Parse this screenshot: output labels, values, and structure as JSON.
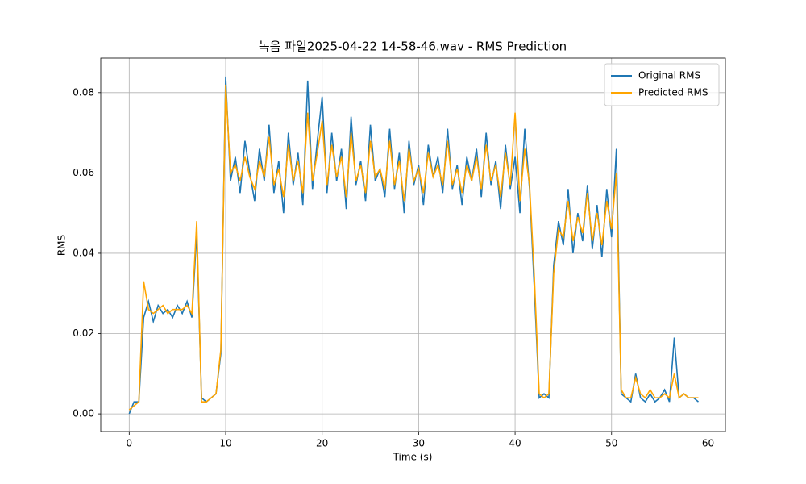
{
  "chart_data": {
    "type": "line",
    "title": "녹음 파일2025-04-22 14-58-46.wav - RMS Prediction",
    "x_label": "Time (s)",
    "y_label": "RMS",
    "x": [
      0,
      0.5,
      1,
      1.5,
      2,
      2.5,
      3,
      3.5,
      4,
      4.5,
      5,
      5.5,
      6,
      6.5,
      7,
      7.5,
      8,
      8.5,
      9,
      9.5,
      10,
      10.5,
      11,
      11.5,
      12,
      12.5,
      13,
      13.5,
      14,
      14.5,
      15,
      15.5,
      16,
      16.5,
      17,
      17.5,
      18,
      18.5,
      19,
      19.5,
      20,
      20.5,
      21,
      21.5,
      22,
      22.5,
      23,
      23.5,
      24,
      24.5,
      25,
      25.5,
      26,
      26.5,
      27,
      27.5,
      28,
      28.5,
      29,
      29.5,
      30,
      30.5,
      31,
      31.5,
      32,
      32.5,
      33,
      33.5,
      34,
      34.5,
      35,
      35.5,
      36,
      36.5,
      37,
      37.5,
      38,
      38.5,
      39,
      39.5,
      40,
      40.5,
      41,
      41.5,
      42,
      42.5,
      43,
      43.5,
      44,
      44.5,
      45,
      45.5,
      46,
      46.5,
      47,
      47.5,
      48,
      48.5,
      49,
      49.5,
      50,
      50.5,
      51,
      51.5,
      52,
      52.5,
      53,
      53.5,
      54,
      54.5,
      55,
      55.5,
      56,
      56.5,
      57,
      57.5,
      58,
      58.5,
      59
    ],
    "series": [
      {
        "name": "Original RMS",
        "color": "#1f77b4",
        "values": [
          0.0,
          0.003,
          0.003,
          0.024,
          0.028,
          0.023,
          0.027,
          0.025,
          0.026,
          0.024,
          0.027,
          0.025,
          0.028,
          0.024,
          0.045,
          0.004,
          0.003,
          0.004,
          0.005,
          0.015,
          0.084,
          0.058,
          0.064,
          0.055,
          0.068,
          0.06,
          0.053,
          0.066,
          0.058,
          0.072,
          0.055,
          0.063,
          0.05,
          0.07,
          0.057,
          0.065,
          0.052,
          0.083,
          0.056,
          0.068,
          0.079,
          0.055,
          0.07,
          0.058,
          0.066,
          0.051,
          0.074,
          0.057,
          0.063,
          0.053,
          0.072,
          0.058,
          0.061,
          0.054,
          0.071,
          0.056,
          0.065,
          0.05,
          0.068,
          0.057,
          0.062,
          0.052,
          0.067,
          0.059,
          0.064,
          0.055,
          0.071,
          0.056,
          0.062,
          0.052,
          0.064,
          0.058,
          0.066,
          0.054,
          0.07,
          0.057,
          0.063,
          0.051,
          0.067,
          0.056,
          0.064,
          0.05,
          0.071,
          0.056,
          0.031,
          0.004,
          0.005,
          0.004,
          0.037,
          0.048,
          0.042,
          0.056,
          0.04,
          0.05,
          0.043,
          0.057,
          0.041,
          0.052,
          0.039,
          0.056,
          0.044,
          0.066,
          0.005,
          0.004,
          0.003,
          0.01,
          0.004,
          0.003,
          0.005,
          0.003,
          0.004,
          0.006,
          0.003,
          0.019,
          0.004,
          0.005,
          0.004,
          0.004,
          0.003
        ]
      },
      {
        "name": "Predicted RMS",
        "color": "#ffa500",
        "values": [
          0.001,
          0.002,
          0.003,
          0.033,
          0.026,
          0.025,
          0.026,
          0.027,
          0.025,
          0.026,
          0.026,
          0.026,
          0.027,
          0.025,
          0.048,
          0.003,
          0.003,
          0.004,
          0.005,
          0.016,
          0.082,
          0.06,
          0.062,
          0.058,
          0.064,
          0.059,
          0.056,
          0.063,
          0.059,
          0.069,
          0.057,
          0.061,
          0.054,
          0.067,
          0.058,
          0.063,
          0.055,
          0.075,
          0.058,
          0.065,
          0.073,
          0.057,
          0.067,
          0.059,
          0.064,
          0.054,
          0.07,
          0.058,
          0.062,
          0.055,
          0.068,
          0.059,
          0.061,
          0.056,
          0.068,
          0.057,
          0.063,
          0.053,
          0.066,
          0.058,
          0.061,
          0.055,
          0.065,
          0.059,
          0.062,
          0.057,
          0.068,
          0.057,
          0.061,
          0.055,
          0.062,
          0.058,
          0.064,
          0.056,
          0.067,
          0.058,
          0.062,
          0.054,
          0.065,
          0.057,
          0.075,
          0.053,
          0.066,
          0.057,
          0.034,
          0.005,
          0.004,
          0.005,
          0.035,
          0.046,
          0.044,
          0.053,
          0.043,
          0.049,
          0.045,
          0.055,
          0.043,
          0.05,
          0.042,
          0.053,
          0.046,
          0.06,
          0.006,
          0.004,
          0.004,
          0.009,
          0.005,
          0.004,
          0.006,
          0.004,
          0.004,
          0.005,
          0.004,
          0.01,
          0.004,
          0.005,
          0.004,
          0.004,
          0.004
        ]
      }
    ],
    "xlim": [
      -2.95,
      61.8
    ],
    "ylim": [
      -0.0044,
      0.0886
    ],
    "xticks": [
      0,
      10,
      20,
      30,
      40,
      50,
      60
    ],
    "yticks": [
      {
        "value": 0,
        "label": "0.00"
      },
      {
        "value": 0.02,
        "label": "0.02"
      },
      {
        "value": 0.04,
        "label": "0.04"
      },
      {
        "value": 0.06,
        "label": "0.06"
      },
      {
        "value": 0.08,
        "label": "0.08"
      }
    ],
    "grid": true,
    "legend": "upper right"
  }
}
